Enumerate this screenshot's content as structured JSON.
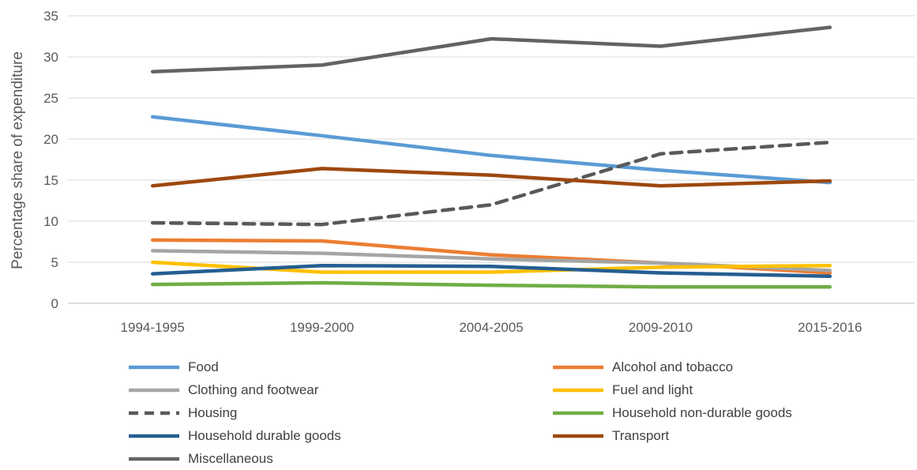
{
  "chart_data": {
    "type": "line",
    "title": "",
    "xlabel": "",
    "ylabel": "Percentage share of expenditure",
    "ylim": [
      0,
      35
    ],
    "yticks": [
      0,
      5,
      10,
      15,
      20,
      25,
      30,
      35
    ],
    "grid": true,
    "legend_position": "bottom",
    "categories": [
      "1994-1995",
      "1999-2000",
      "2004-2005",
      "2009-2010",
      "2015-2016"
    ],
    "series": [
      {
        "name": "Food",
        "color": "#5B9BD5",
        "dashed": false,
        "values": [
          22.7,
          20.4,
          18.0,
          16.2,
          14.7
        ]
      },
      {
        "name": "Alcohol and tobacco",
        "color": "#ED7D31",
        "dashed": false,
        "values": [
          7.7,
          7.6,
          5.9,
          4.9,
          3.7
        ]
      },
      {
        "name": "Clothing and footwear",
        "color": "#A5A5A5",
        "dashed": false,
        "values": [
          6.4,
          6.1,
          5.4,
          4.9,
          4.0
        ]
      },
      {
        "name": "Fuel and light",
        "color": "#FFC000",
        "dashed": false,
        "values": [
          5.0,
          3.8,
          3.8,
          4.4,
          4.6
        ]
      },
      {
        "name": "Housing",
        "color": "#595959",
        "dashed": true,
        "values": [
          9.8,
          9.6,
          12.0,
          18.2,
          19.6
        ]
      },
      {
        "name": "Household non-durable goods",
        "color": "#70AD47",
        "dashed": false,
        "values": [
          2.3,
          2.5,
          2.2,
          2.0,
          2.0
        ]
      },
      {
        "name": "Household durable goods",
        "color": "#255E91",
        "dashed": false,
        "values": [
          3.6,
          4.6,
          4.5,
          3.7,
          3.3
        ]
      },
      {
        "name": "Transport",
        "color": "#9E480E",
        "dashed": false,
        "values": [
          14.3,
          16.4,
          15.6,
          14.3,
          14.9
        ]
      },
      {
        "name": "Miscellaneous",
        "color": "#636363",
        "dashed": false,
        "values": [
          28.2,
          29.0,
          32.2,
          31.3,
          33.6
        ]
      }
    ]
  }
}
